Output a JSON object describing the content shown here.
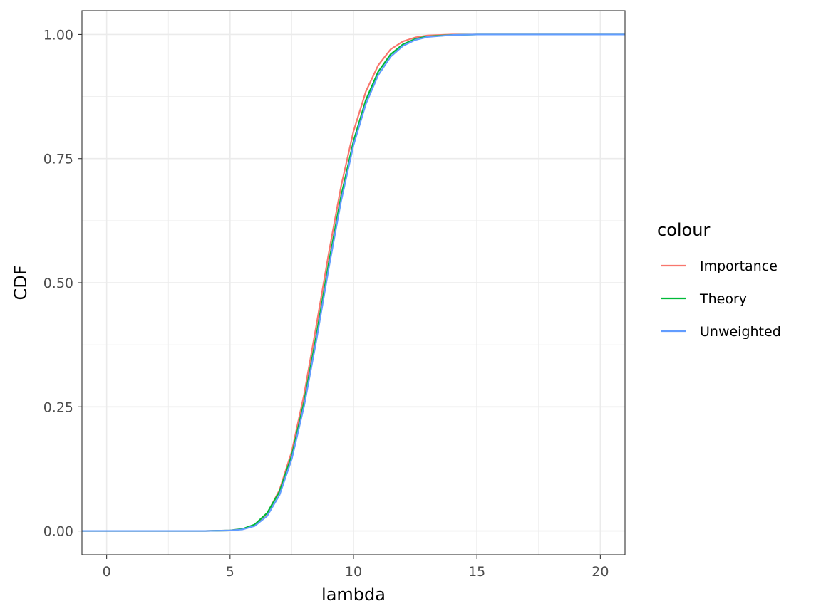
{
  "chart_data": {
    "type": "line",
    "title": "",
    "xlabel": "lambda",
    "ylabel": "CDF",
    "xlim": [
      -1,
      21
    ],
    "ylim": [
      -0.048,
      1.048
    ],
    "x_ticks": [
      0,
      5,
      10,
      15,
      20
    ],
    "x_tick_labels": [
      "0",
      "5",
      "10",
      "15",
      "20"
    ],
    "y_ticks": [
      0,
      0.25,
      0.5,
      0.75,
      1
    ],
    "y_tick_labels": [
      "0.00",
      "0.25",
      "0.50",
      "0.75",
      "1.00"
    ],
    "grid": true,
    "legend": {
      "title": "colour",
      "placement": "right"
    },
    "series": [
      {
        "name": "Importance",
        "color": "#F8766D",
        "x": [
          -1,
          4,
          5,
          5.5,
          6,
          6.5,
          7,
          7.5,
          8,
          8.5,
          9,
          9.5,
          10,
          10.5,
          11,
          11.5,
          12,
          12.5,
          13,
          14,
          15,
          21
        ],
        "y": [
          0,
          0,
          0.001,
          0.004,
          0.012,
          0.035,
          0.082,
          0.16,
          0.275,
          0.415,
          0.56,
          0.695,
          0.805,
          0.885,
          0.938,
          0.97,
          0.986,
          0.994,
          0.998,
          1,
          1,
          1
        ]
      },
      {
        "name": "Theory",
        "color": "#00BA38",
        "x": [
          -1,
          4,
          5,
          5.5,
          6,
          6.5,
          7,
          7.5,
          8,
          8.5,
          9,
          9.5,
          10,
          10.5,
          11,
          11.5,
          12,
          12.5,
          13,
          14,
          15,
          21
        ],
        "y": [
          0,
          0,
          0.001,
          0.004,
          0.013,
          0.036,
          0.079,
          0.152,
          0.26,
          0.395,
          0.54,
          0.675,
          0.785,
          0.868,
          0.925,
          0.96,
          0.98,
          0.991,
          0.996,
          0.999,
          1,
          1
        ]
      },
      {
        "name": "Unweighted",
        "color": "#619CFF",
        "x": [
          -1,
          4,
          5,
          5.5,
          6,
          6.5,
          7,
          7.5,
          8,
          8.5,
          9,
          9.5,
          10,
          10.5,
          11,
          11.5,
          12,
          12.5,
          13,
          14,
          15,
          21
        ],
        "y": [
          0,
          0,
          0.001,
          0.003,
          0.01,
          0.03,
          0.072,
          0.145,
          0.252,
          0.385,
          0.53,
          0.665,
          0.777,
          0.86,
          0.918,
          0.955,
          0.977,
          0.989,
          0.995,
          0.999,
          1,
          1
        ]
      }
    ]
  }
}
